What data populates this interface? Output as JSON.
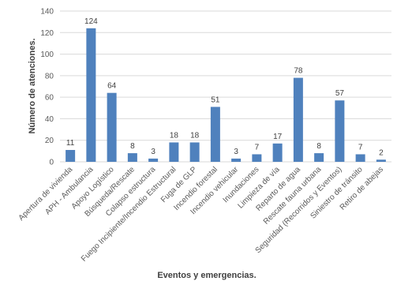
{
  "chart_data": {
    "type": "bar",
    "title": "",
    "xlabel": "Eventos y emergencias.",
    "ylabel": "Número de atenciones.",
    "ylim": [
      0,
      140
    ],
    "yticks": [
      0,
      20,
      40,
      60,
      80,
      100,
      120,
      140
    ],
    "grid": true,
    "legend": "none",
    "bar_color": "#4f81bd",
    "categories": [
      "Apertura de vivienda",
      "APH - Ambulancia",
      "Apoyo Logístico",
      "Búsqueda/Rescate",
      "Colapso estructura",
      "Fuego Incipiente/Incendio Estructural",
      "Fuga de GLP",
      "Incendio forestal",
      "Incendio vehicular",
      "Inundaciones",
      "Limpieza de vía",
      "Reparto de agua",
      "Rescate fauna urbana",
      "Seguridad (Recorridos y Eventos)",
      "Siniestro de tránsito",
      "Retiro de abejas"
    ],
    "values": [
      11,
      124,
      64,
      8,
      3,
      18,
      18,
      51,
      3,
      7,
      17,
      78,
      8,
      57,
      7,
      2
    ]
  }
}
